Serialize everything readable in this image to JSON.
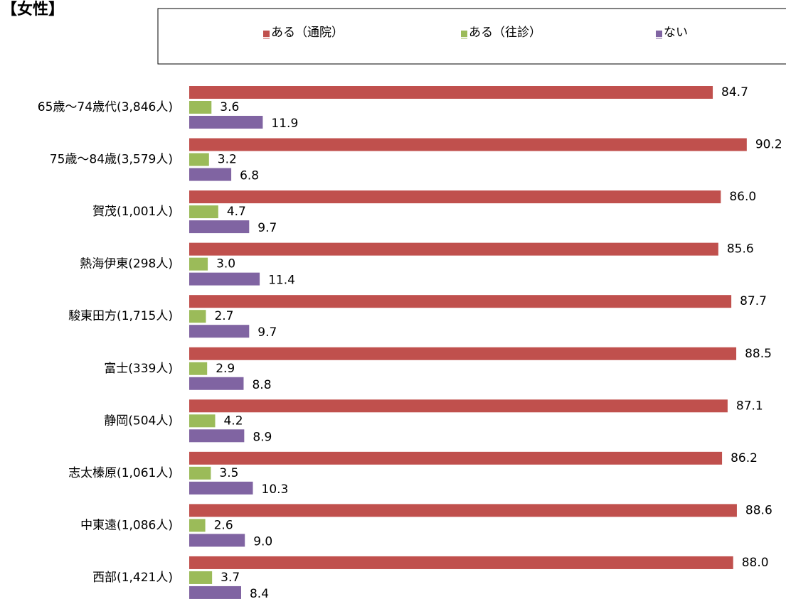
{
  "chart_data": {
    "type": "bar",
    "orientation": "horizontal",
    "title": "【女性】",
    "categories": [
      "65歳～74歳代(3,846人)",
      "75歳～84歳(3,579人)",
      "賀茂(1,001人)",
      "熱海伊東(298人)",
      "駿東田方(1,715人)",
      "富士(339人)",
      "静岡(504人)",
      "志太榛原(1,061人)",
      "中東遠(1,086人)",
      "西部(1,421人)"
    ],
    "series": [
      {
        "name": "ある（通院）",
        "color": "#c0504d",
        "values": [
          84.7,
          90.2,
          86.0,
          85.6,
          87.7,
          88.5,
          87.1,
          86.2,
          88.6,
          88.0
        ],
        "value_labels": [
          "84.7",
          "90.2",
          "86.0",
          "85.6",
          "87.7",
          "88.5",
          "87.1",
          "86.2",
          "88.6",
          "88.0"
        ]
      },
      {
        "name": "ある（往診）",
        "color": "#9bbb59",
        "values": [
          3.6,
          3.2,
          4.7,
          3.0,
          2.7,
          2.9,
          4.2,
          3.5,
          2.6,
          3.7
        ],
        "value_labels": [
          "3.6",
          "3.2",
          "4.7",
          "3.0",
          "2.7",
          "2.9",
          "4.2",
          "3.5",
          "2.6",
          "3.7"
        ]
      },
      {
        "name": "ない",
        "color": "#8064a2",
        "values": [
          11.9,
          6.8,
          9.7,
          11.4,
          9.7,
          8.8,
          8.9,
          10.3,
          9.0,
          8.4
        ],
        "value_labels": [
          "11.9",
          "6.8",
          "9.7",
          "11.4",
          "9.7",
          "8.8",
          "8.9",
          "10.3",
          "9.0",
          "8.4"
        ]
      }
    ],
    "legend": "top"
  }
}
